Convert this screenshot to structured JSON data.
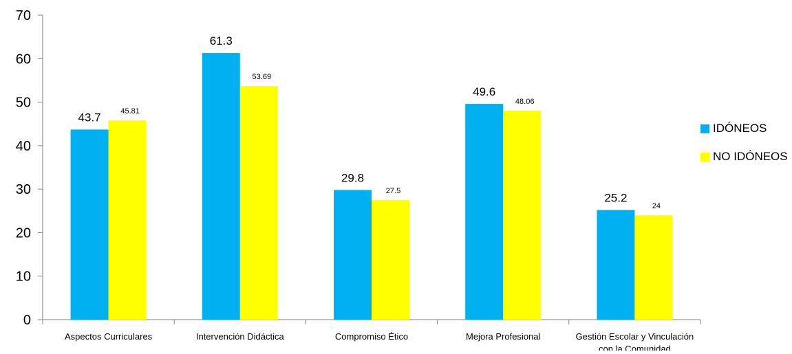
{
  "chart_data": {
    "type": "bar",
    "categories": [
      [
        "Aspectos Curriculares"
      ],
      [
        "Intervención Didáctica"
      ],
      [
        "Compromiso Ético"
      ],
      [
        "Mejora Profesional"
      ],
      [
        "Gestión Escolar y Vinculación",
        "con la Comunidad"
      ]
    ],
    "series": [
      {
        "name": "IDÓNEOS",
        "color": "#00B0F0",
        "values": [
          43.7,
          61.3,
          29.8,
          49.6,
          25.2
        ],
        "value_labels": [
          "43.7",
          "61.3",
          "29.8",
          "49.6",
          "25.2"
        ]
      },
      {
        "name": "NO IDÓNEOS",
        "color": "#FFFF00",
        "values": [
          45.81,
          53.69,
          27.5,
          48.06,
          24
        ],
        "value_labels": [
          "45.81",
          "53.69",
          "27.5",
          "48.06",
          "24"
        ]
      }
    ],
    "ylim": [
      0,
      70
    ],
    "yticks": [
      "0",
      "10",
      "20",
      "30",
      "40",
      "50",
      "60",
      "70"
    ],
    "grid": false,
    "legend_position": "right",
    "title": "",
    "xlabel": "",
    "ylabel": ""
  }
}
